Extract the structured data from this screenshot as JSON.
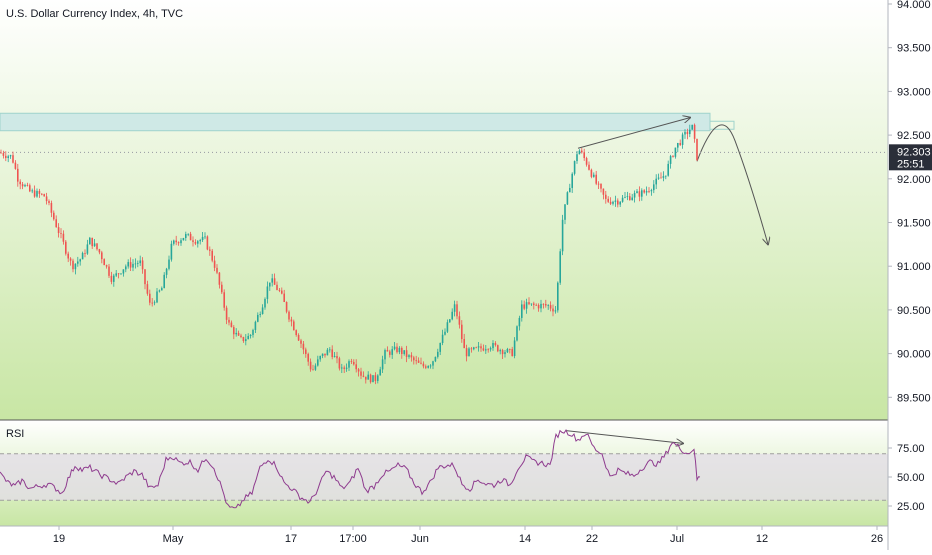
{
  "header": {
    "title": "U.S. Dollar Currency Index, 4h, TVC"
  },
  "rsi_panel": {
    "label": "RSI"
  },
  "price_axis": {
    "ticks": [
      "94.000",
      "93.500",
      "93.000",
      "92.500",
      "92.000",
      "91.500",
      "91.000",
      "90.500",
      "90.000",
      "89.500"
    ]
  },
  "rsi_axis": {
    "ticks": [
      "75.00",
      "50.00",
      "25.00"
    ]
  },
  "time_axis": {
    "ticks": [
      "19",
      "May",
      "17",
      "17:00",
      "Jun",
      "14",
      "22",
      "Jul",
      "12",
      "26"
    ]
  },
  "last_price": {
    "value": "92.303",
    "countdown": "25:51"
  },
  "colors": {
    "up": "#26a69a",
    "down": "#ef5350",
    "rsi_line": "#8e3b8e",
    "background_top": "#ffffff",
    "background_bottom": "#c8e6a4",
    "resistance_zone": "#cfe9e6",
    "price_label": "#2a2e39"
  },
  "chart_data": [
    {
      "type": "candlestick",
      "title": "U.S. Dollar Currency Index, 4h, TVC",
      "ylim": [
        89.3,
        94.0
      ],
      "x_ticks": [
        "19",
        "May",
        "17",
        "17:00",
        "Jun",
        "14",
        "22",
        "Jul",
        "12",
        "26"
      ],
      "last_price": 92.303,
      "close_path": [
        [
          0,
          92.3
        ],
        [
          12,
          92.25
        ],
        [
          18,
          92.0
        ],
        [
          30,
          91.85
        ],
        [
          45,
          91.8
        ],
        [
          62,
          91.3
        ],
        [
          72,
          91.0
        ],
        [
          82,
          91.1
        ],
        [
          90,
          91.3
        ],
        [
          100,
          91.15
        ],
        [
          112,
          90.85
        ],
        [
          125,
          91.0
        ],
        [
          140,
          91.05
        ],
        [
          150,
          90.55
        ],
        [
          162,
          90.75
        ],
        [
          172,
          91.25
        ],
        [
          185,
          91.35
        ],
        [
          195,
          91.3
        ],
        [
          205,
          91.3
        ],
        [
          215,
          91.0
        ],
        [
          228,
          90.35
        ],
        [
          240,
          90.15
        ],
        [
          250,
          90.2
        ],
        [
          262,
          90.55
        ],
        [
          270,
          90.85
        ],
        [
          280,
          90.7
        ],
        [
          290,
          90.4
        ],
        [
          300,
          90.15
        ],
        [
          312,
          89.8
        ],
        [
          320,
          89.95
        ],
        [
          330,
          90.05
        ],
        [
          342,
          89.8
        ],
        [
          352,
          89.95
        ],
        [
          362,
          89.75
        ],
        [
          375,
          89.7
        ],
        [
          385,
          90.0
        ],
        [
          398,
          90.05
        ],
        [
          410,
          89.95
        ],
        [
          422,
          89.85
        ],
        [
          432,
          89.9
        ],
        [
          445,
          90.25
        ],
        [
          455,
          90.55
        ],
        [
          465,
          90.0
        ],
        [
          478,
          90.05
        ],
        [
          490,
          90.1
        ],
        [
          500,
          90.05
        ],
        [
          512,
          90.0
        ],
        [
          522,
          90.55
        ],
        [
          535,
          90.55
        ],
        [
          548,
          90.55
        ],
        [
          556,
          90.5
        ],
        [
          562,
          91.5
        ],
        [
          570,
          91.95
        ],
        [
          578,
          92.35
        ],
        [
          586,
          92.2
        ],
        [
          596,
          91.95
        ],
        [
          606,
          91.75
        ],
        [
          618,
          91.75
        ],
        [
          630,
          91.8
        ],
        [
          645,
          91.85
        ],
        [
          655,
          91.95
        ],
        [
          665,
          92.05
        ],
        [
          675,
          92.35
        ],
        [
          685,
          92.5
        ],
        [
          692,
          92.6
        ],
        [
          697,
          92.25
        ],
        [
          699,
          92.3
        ]
      ],
      "annotations": {
        "resistance_zone": [
          92.55,
          92.75
        ],
        "trend_line": {
          "from": [
            578,
            92.35
          ],
          "to": [
            690,
            92.7
          ]
        },
        "projection": {
          "from": [
            697,
            92.2
          ],
          "peak": [
            720,
            92.55
          ],
          "to": [
            768,
            91.25
          ]
        }
      }
    },
    {
      "type": "line",
      "title": "RSI",
      "ylim": [
        17,
        95
      ],
      "band": [
        30,
        70
      ],
      "y_ticks": [
        75,
        50,
        25
      ],
      "path": [
        [
          0,
          53
        ],
        [
          8,
          45
        ],
        [
          15,
          42
        ],
        [
          22,
          47
        ],
        [
          30,
          40
        ],
        [
          38,
          42
        ],
        [
          48,
          44
        ],
        [
          56,
          40
        ],
        [
          62,
          36
        ],
        [
          68,
          48
        ],
        [
          75,
          60
        ],
        [
          82,
          56
        ],
        [
          90,
          58
        ],
        [
          100,
          52
        ],
        [
          110,
          48
        ],
        [
          118,
          44
        ],
        [
          126,
          50
        ],
        [
          134,
          55
        ],
        [
          142,
          52
        ],
        [
          150,
          40
        ],
        [
          158,
          43
        ],
        [
          166,
          65
        ],
        [
          172,
          68
        ],
        [
          180,
          62
        ],
        [
          190,
          63
        ],
        [
          198,
          56
        ],
        [
          206,
          67
        ],
        [
          214,
          58
        ],
        [
          222,
          40
        ],
        [
          228,
          24
        ],
        [
          236,
          22
        ],
        [
          244,
          31
        ],
        [
          252,
          36
        ],
        [
          260,
          58
        ],
        [
          268,
          66
        ],
        [
          276,
          60
        ],
        [
          284,
          45
        ],
        [
          292,
          40
        ],
        [
          300,
          33
        ],
        [
          310,
          28
        ],
        [
          318,
          40
        ],
        [
          326,
          55
        ],
        [
          334,
          50
        ],
        [
          342,
          40
        ],
        [
          350,
          45
        ],
        [
          358,
          58
        ],
        [
          366,
          38
        ],
        [
          374,
          42
        ],
        [
          382,
          52
        ],
        [
          390,
          55
        ],
        [
          398,
          60
        ],
        [
          406,
          57
        ],
        [
          414,
          45
        ],
        [
          422,
          37
        ],
        [
          430,
          45
        ],
        [
          438,
          58
        ],
        [
          446,
          60
        ],
        [
          454,
          60
        ],
        [
          462,
          44
        ],
        [
          470,
          40
        ],
        [
          478,
          48
        ],
        [
          486,
          44
        ],
        [
          494,
          43
        ],
        [
          502,
          48
        ],
        [
          510,
          43
        ],
        [
          518,
          58
        ],
        [
          526,
          67
        ],
        [
          534,
          63
        ],
        [
          542,
          62
        ],
        [
          550,
          60
        ],
        [
          556,
          85
        ],
        [
          562,
          90
        ],
        [
          570,
          88
        ],
        [
          578,
          82
        ],
        [
          586,
          88
        ],
        [
          594,
          75
        ],
        [
          602,
          70
        ],
        [
          610,
          50
        ],
        [
          618,
          56
        ],
        [
          626,
          53
        ],
        [
          634,
          51
        ],
        [
          642,
          58
        ],
        [
          650,
          63
        ],
        [
          658,
          61
        ],
        [
          666,
          70
        ],
        [
          672,
          80
        ],
        [
          680,
          75
        ],
        [
          688,
          70
        ],
        [
          694,
          75
        ],
        [
          697,
          48
        ],
        [
          700,
          50
        ]
      ],
      "annotations": {
        "trend_line": {
          "from": [
            566,
            90
          ],
          "to": [
            683,
            79
          ]
        }
      }
    }
  ]
}
